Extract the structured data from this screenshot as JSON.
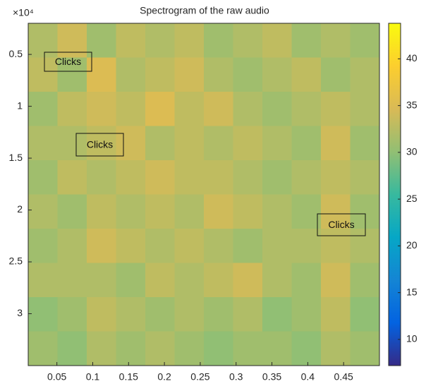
{
  "chart_data": {
    "type": "heatmap",
    "title": "Spectrogram of the raw audio",
    "y_multiplier": "×10⁴",
    "xlim": [
      0.01,
      0.5
    ],
    "xticks": [
      0.05,
      0.1,
      0.15,
      0.2,
      0.25,
      0.3,
      0.35,
      0.4,
      0.45
    ],
    "ylim": [
      0.2,
      3.5
    ],
    "yticks": [
      0.5,
      1,
      1.5,
      2,
      2.5,
      3
    ],
    "y_reversed": true,
    "clim": [
      7.2,
      43.8
    ],
    "cticks": [
      10,
      15,
      20,
      25,
      30,
      35,
      40
    ],
    "colormap": [
      "#352a87",
      "#0363e1",
      "#1485d4",
      "#06a7c6",
      "#38b99e",
      "#92bf73",
      "#d9ba56",
      "#fcce2e",
      "#f9fb0e"
    ],
    "values": [
      [
        32,
        34,
        31,
        33,
        32,
        33,
        31,
        32,
        33,
        31,
        32,
        31
      ],
      [
        33,
        31,
        35,
        32,
        33,
        34,
        32,
        31,
        32,
        33,
        31,
        32
      ],
      [
        31,
        33,
        34,
        33,
        35,
        33,
        34,
        32,
        31,
        32,
        33,
        32
      ],
      [
        32,
        32,
        33,
        34,
        32,
        33,
        32,
        33,
        32,
        31,
        34,
        31
      ],
      [
        31,
        33,
        32,
        33,
        34,
        33,
        33,
        32,
        31,
        32,
        33,
        32
      ],
      [
        32,
        31,
        33,
        32,
        33,
        32,
        34,
        33,
        32,
        31,
        34,
        31
      ],
      [
        31,
        32,
        34,
        33,
        32,
        33,
        32,
        31,
        32,
        32,
        33,
        32
      ],
      [
        32,
        32,
        32,
        31,
        33,
        32,
        33,
        34,
        32,
        31,
        34,
        31
      ],
      [
        30,
        31,
        33,
        32,
        31,
        32,
        31,
        32,
        30,
        31,
        33,
        30
      ],
      [
        31,
        30,
        32,
        31,
        32,
        31,
        30,
        31,
        31,
        30,
        32,
        31
      ]
    ],
    "annotations": [
      "Clicks",
      "Clicks",
      "Clicks"
    ]
  }
}
